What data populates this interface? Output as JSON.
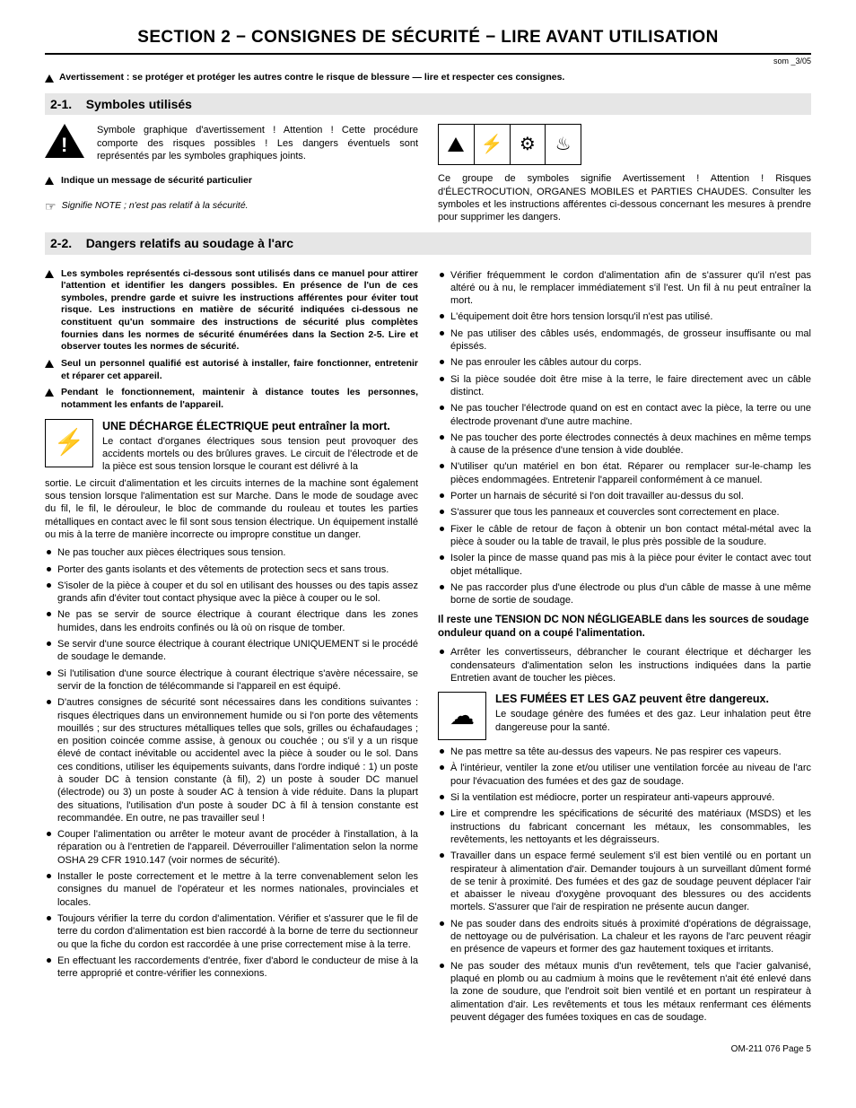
{
  "section_title": "SECTION 2 − CONSIGNES DE SÉCURITÉ − LIRE AVANT UTILISATION",
  "som_tag": "som _3/05",
  "global_warn": "Avertissement : se protéger et protéger les autres contre le risque de blessure — lire et respecter ces consignes.",
  "h21": {
    "num": "2-1.",
    "title": "Symboles utilisés"
  },
  "sym_intro": "Symbole graphique d'avertissement ! Attention ! Cette procédure comporte des risques possibles ! Les dangers éventuels sont représentés par les symboles graphiques joints.",
  "msg_secu": "Indique un message de sécurité particulier",
  "note_txt": "Signifie NOTE ; n'est pas relatif à la sécurité.",
  "sym_group_txt": "Ce groupe de symboles signifie Avertissement ! Attention ! Risques d'ÉLECTROCUTION, ORGANES MOBILES et PARTIES CHAUDES. Consulter les symboles et les instructions afférentes ci-dessous concernant les mesures à prendre pour supprimer les dangers.",
  "h22": {
    "num": "2-2.",
    "title": "Dangers relatifs au soudage à l'arc"
  },
  "pre_bullets": [
    "Les symboles représentés ci-dessous sont utilisés dans ce manuel pour attirer l'attention et identifier les dangers possibles. En présence de l'un de ces symboles, prendre garde et suivre les instructions afférentes pour éviter tout risque. Les instructions en matière de sécurité indiquées ci-dessous ne constituent qu'un sommaire des instructions de sécurité plus complètes fournies dans les normes de sécurité énumérées dans la Section 2-5. Lire et observer toutes les normes de sécurité.",
    "Seul un personnel qualifié est autorisé à installer, faire fonctionner, entretenir et réparer cet appareil.",
    "Pendant le fonctionnement, maintenir à distance toutes les personnes, notamment les enfants de l'appareil."
  ],
  "shock": {
    "title": "UNE DÉCHARGE ÉLECTRIQUE peut entraîner la mort.",
    "body": "Le contact d'organes électriques sous tension peut provoquer des accidents mortels ou des brûlures graves. Le circuit de l'électrode et de la pièce est sous tension lorsque le courant est délivré à la sortie. Le circuit d'alimentation et les circuits internes de la machine sont également sous tension lorsque l'alimentation est sur Marche. Dans le mode de soudage avec du fil, le fil, le dérouleur, le bloc de commande du rouleau et toutes les parties métalliques en contact avec le fil sont sous tension électrique. Un équipement installé ou mis à la terre de manière incorrecte ou impropre constitue un danger."
  },
  "shock_list_left": [
    "Ne pas toucher aux pièces électriques sous tension.",
    "Porter des gants isolants et des vêtements de protection secs et sans trous.",
    "S'isoler de la pièce à couper et du sol en utilisant des housses ou des tapis assez grands afin d'éviter tout contact physique avec la pièce à couper ou le sol.",
    "Ne pas se servir de source électrique à courant électrique dans les zones humides, dans les endroits confinés ou là où on risque de tomber.",
    "Se servir d'une source électrique à courant électrique UNIQUEMENT si le procédé de soudage le demande.",
    "Si l'utilisation d'une source électrique à courant électrique s'avère nécessaire, se servir de la fonction de télécommande si l'appareil en est équipé.",
    "D'autres consignes de sécurité sont nécessaires dans les conditions suivantes : risques électriques dans un environnement humide ou si l'on porte des vêtements mouillés ; sur des structures métalliques telles que sols, grilles ou échafaudages ; en position coincée comme assise, à genoux ou couchée ; ou s'il y a un risque élevé de contact inévitable ou accidentel avec la pièce à souder ou le sol. Dans ces conditions, utiliser les équipements suivants, dans l'ordre indiqué : 1) un poste à souder DC à tension constante (à fil), 2) un poste à souder DC manuel (électrode) ou 3) un poste à souder AC à tension à vide réduite. Dans la plupart des situations, l'utilisation d'un poste à souder DC à fil à tension constante est recommandée. En outre, ne pas travailler seul !",
    "Couper l'alimentation ou arrêter le moteur avant de procéder à l'installation, à la réparation ou à l'entretien de l'appareil. Déverrouiller l'alimentation selon la norme OSHA 29 CFR 1910.147 (voir normes de sécurité).",
    "Installer le poste correctement et le mettre à la terre convenablement selon les consignes du manuel de l'opérateur et les normes nationales, provinciales et locales.",
    "Toujours vérifier la terre du cordon d'alimentation. Vérifier et s'assurer que le fil de terre du cordon d'alimentation est bien raccordé à la borne de terre du sectionneur ou que la fiche du cordon est raccordée à une prise correctement mise à la terre.",
    "En effectuant les raccordements d'entrée, fixer d'abord le conducteur de mise à la terre approprié et contre-vérifier les connexions."
  ],
  "shock_list_right": [
    "Vérifier fréquemment le cordon d'alimentation afin de s'assurer qu'il n'est pas altéré ou à nu, le remplacer immédiatement s'il l'est. Un fil à nu peut entraîner la mort.",
    "L'équipement doit être hors tension lorsqu'il n'est pas utilisé.",
    "Ne pas utiliser des câbles usés, endommagés, de grosseur insuffisante ou mal épissés.",
    "Ne pas enrouler les câbles autour du corps.",
    "Si la pièce soudée doit être mise à la terre, le faire directement avec un câble distinct.",
    "Ne pas toucher l'électrode quand on est en contact avec la pièce, la terre ou une électrode provenant d'une autre machine.",
    "Ne pas toucher des porte électrodes connectés à deux machines en même temps à cause de la présence d'une tension à vide doublée.",
    "N'utiliser qu'un matériel en bon état. Réparer ou remplacer sur-le-champ les pièces endommagées. Entretenir l'appareil conformément à ce manuel.",
    "Porter un harnais de sécurité si l'on doit travailler au-dessus du sol.",
    "S'assurer que tous les panneaux et couvercles sont correctement en place.",
    "Fixer le câble de retour de façon à obtenir un bon contact métal-métal avec la pièce à souder ou la table de travail, le plus près possible de la soudure.",
    "Isoler la pince de masse quand pas mis à la pièce pour éviter le contact avec tout objet métallique.",
    "Ne pas raccorder plus d'une électrode ou plus d'un câble de masse à une même borne de sortie de soudage."
  ],
  "dc_title": "Il reste une TENSION DC NON NÉGLIGEABLE dans les sources de soudage onduleur quand on a coupé l'alimentation.",
  "dc_list": [
    "Arrêter les convertisseurs, débrancher le courant électrique et décharger les condensateurs d'alimentation selon les instructions indiquées dans la partie Entretien avant de toucher les pièces."
  ],
  "fumes": {
    "title": "LES FUMÉES ET LES GAZ peuvent être dangereux.",
    "body": "Le soudage génère des fumées et des gaz. Leur inhalation peut être dangereuse pour la santé."
  },
  "fumes_list": [
    "Ne pas mettre sa tête au-dessus des vapeurs. Ne pas respirer ces vapeurs.",
    "À l'intérieur, ventiler la zone et/ou utiliser une ventilation forcée au niveau de l'arc pour l'évacuation des fumées et des gaz de soudage.",
    "Si la ventilation est médiocre, porter un respirateur anti-vapeurs approuvé.",
    "Lire et comprendre les spécifications de sécurité des matériaux (MSDS) et les instructions du fabricant concernant les métaux, les consommables, les revêtements, les nettoyants et les dégraisseurs.",
    "Travailler dans un espace fermé seulement s'il est bien ventilé ou en portant un respirateur à alimentation d'air. Demander toujours à un surveillant dûment formé de se tenir à proximité. Des fumées et des gaz de soudage peuvent déplacer l'air et abaisser le niveau d'oxygène provoquant des blessures ou des accidents mortels. S'assurer que l'air de respiration ne présente aucun danger.",
    "Ne pas souder dans des endroits situés à proximité d'opérations de dégraissage, de nettoyage ou de pulvérisation. La chaleur et les rayons de l'arc peuvent réagir en présence de vapeurs et former des gaz hautement toxiques et irritants.",
    "Ne pas souder des métaux munis d'un revêtement, tels que l'acier galvanisé, plaqué en plomb ou au cadmium à moins que le revêtement n'ait été enlevé dans la zone de soudure, que l'endroit soit bien ventilé et en portant un respirateur à alimentation d'air. Les revêtements et tous les métaux renfermant ces éléments peuvent dégager des fumées toxiques en cas de soudage."
  ],
  "footer": "OM-211 076 Page 5"
}
